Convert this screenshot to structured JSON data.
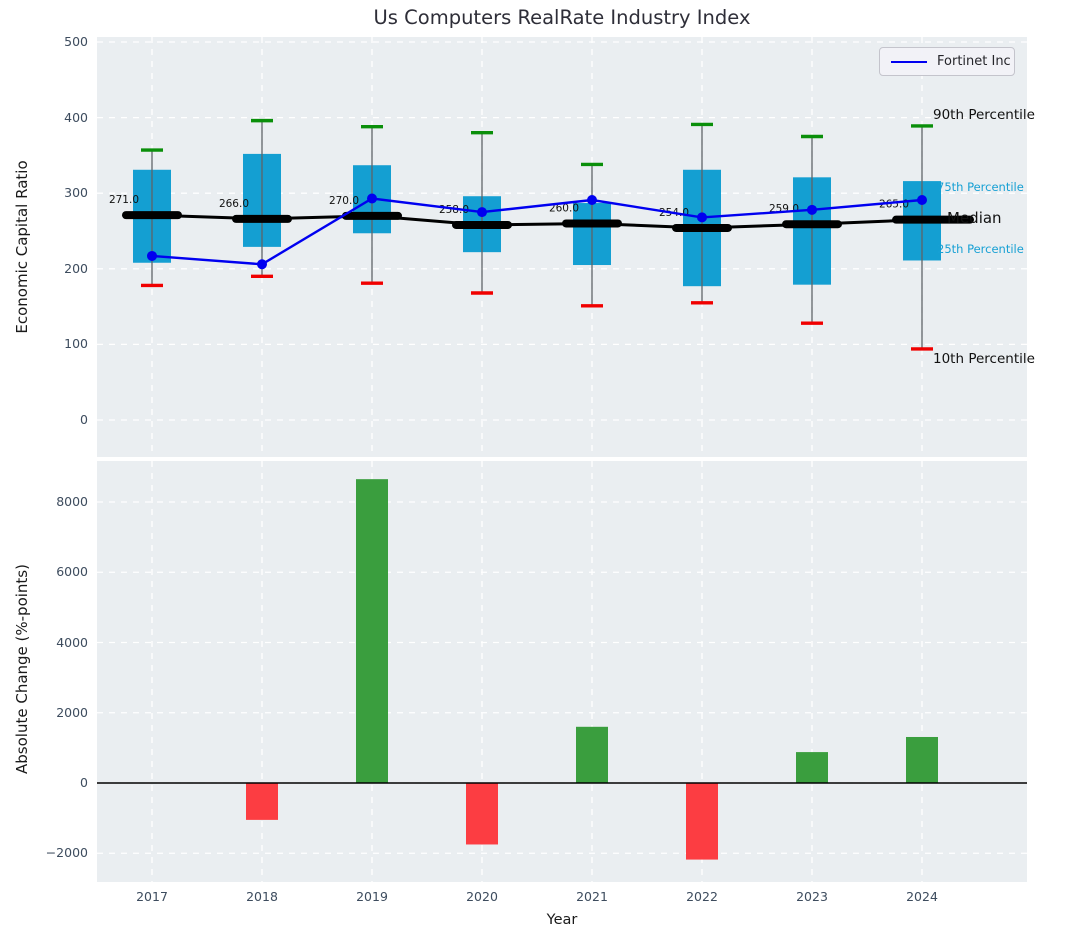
{
  "title": "Us Computers RealRate Industry Index",
  "legend": {
    "label": "Fortinet Inc"
  },
  "axes": {
    "top": {
      "ylabel": "Economic Capital Ratio"
    },
    "bottom": {
      "ylabel": "Absolute Change (%-points)",
      "xlabel": "Year"
    }
  },
  "annotations": {
    "p90": "90th Percentile",
    "p75": "75th Percentile",
    "median": "Median",
    "p25": "25th Percentile",
    "p10": "10th Percentile"
  },
  "colors": {
    "box_fill": "#149fd2",
    "whisker": "#5f6468",
    "cap_high": "#0a8f0a",
    "cap_low": "#f00000",
    "median_line": "#000000",
    "company_line": "#0000f0",
    "bar_positive": "#3a9e3e",
    "bar_negative": "#fc3d42",
    "plot_bg": "#eaeef1",
    "grid": "#ffffff",
    "tick_color": "#3d4c5e",
    "cyan_text": "#17a0d4"
  },
  "chart_data": [
    {
      "type": "boxplot",
      "title": "Us Computers RealRate Industry Index",
      "ylabel": "Economic Capital Ratio",
      "ylim": [
        -60,
        500
      ],
      "yticks": [
        0,
        100,
        200,
        300,
        400,
        500
      ],
      "grid": true,
      "legend_position": "upper right",
      "categories": [
        2017,
        2018,
        2019,
        2020,
        2021,
        2022,
        2023,
        2024
      ],
      "series": [
        {
          "name": "90th percentile",
          "values": [
            357,
            396,
            388,
            380,
            338,
            391,
            375,
            389
          ]
        },
        {
          "name": "75th percentile",
          "values": [
            331,
            352,
            337,
            296,
            287,
            331,
            321,
            316
          ]
        },
        {
          "name": "median",
          "values": [
            271,
            266,
            270,
            258,
            260,
            254,
            259,
            265
          ]
        },
        {
          "name": "25th percentile",
          "values": [
            208,
            229,
            247,
            222,
            205,
            177,
            179,
            211
          ]
        },
        {
          "name": "10th percentile",
          "values": [
            178,
            190,
            181,
            168,
            151,
            155,
            128,
            94
          ]
        },
        {
          "name": "Fortinet Inc",
          "values": [
            217,
            206,
            293,
            275,
            291,
            268,
            278,
            291
          ]
        }
      ],
      "median_labels": [
        "271.0",
        "266.0",
        "270.0",
        "258.0",
        "260.0",
        "254.0",
        "259.0",
        "265.0"
      ]
    },
    {
      "type": "bar",
      "ylabel": "Absolute Change (%-points)",
      "xlabel": "Year",
      "ylim": [
        -2900,
        9250
      ],
      "yticks": [
        -2000,
        0,
        2000,
        4000,
        6000,
        8000
      ],
      "grid": true,
      "categories": [
        2017,
        2018,
        2019,
        2020,
        2021,
        2022,
        2023,
        2024
      ],
      "values": [
        0,
        -1050,
        8650,
        -1750,
        1600,
        -2180,
        880,
        1310
      ]
    }
  ]
}
